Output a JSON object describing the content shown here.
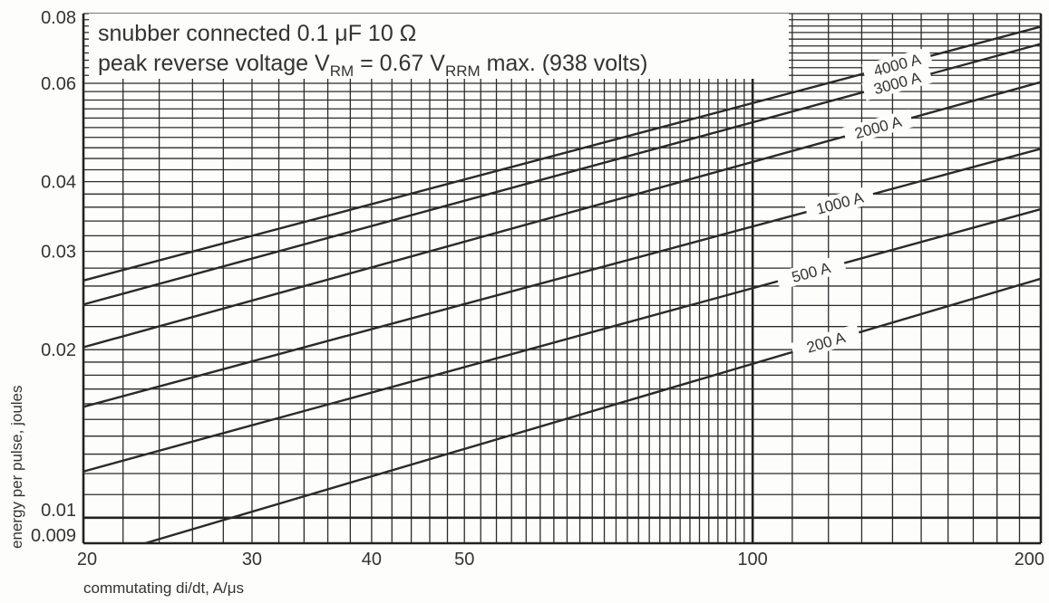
{
  "chart_data": {
    "type": "line",
    "xscale": "log",
    "yscale": "log",
    "xlim": [
      20,
      200
    ],
    "ylim": [
      0.009,
      0.08
    ],
    "xlabel": "commutating di/dt, A/μs",
    "ylabel": "energy per pulse, joules",
    "x_ticks": [
      "20",
      "30",
      "40",
      "50",
      "100",
      "200"
    ],
    "y_ticks": [
      "0.08",
      "0.06",
      "0.04",
      "0.03",
      "0.02",
      "0.01",
      "0.009"
    ],
    "annotation": {
      "line1": "snubber connected 0.1 μF 10 Ω",
      "line2_pre": "peak reverse voltage V",
      "line2_sub1": "RM",
      "line2_mid": " = 0.67 V",
      "line2_sub2": "RRM",
      "line2_post": " max. (938 volts)"
    },
    "series": [
      {
        "name": "4000 A",
        "x": [
          20,
          200
        ],
        "y": [
          0.0266,
          0.0758
        ]
      },
      {
        "name": "3000 A",
        "x": [
          20,
          200
        ],
        "y": [
          0.0241,
          0.0706
        ]
      },
      {
        "name": "2000 A",
        "x": [
          20,
          200
        ],
        "y": [
          0.0202,
          0.0603
        ]
      },
      {
        "name": "1000 A",
        "x": [
          20,
          200
        ],
        "y": [
          0.0158,
          0.0458
        ]
      },
      {
        "name": "500 A",
        "x": [
          20,
          200
        ],
        "y": [
          0.0121,
          0.0357
        ]
      },
      {
        "name": "200 A",
        "x": [
          23.2,
          200
        ],
        "y": [
          0.009,
          0.0268
        ]
      }
    ]
  }
}
